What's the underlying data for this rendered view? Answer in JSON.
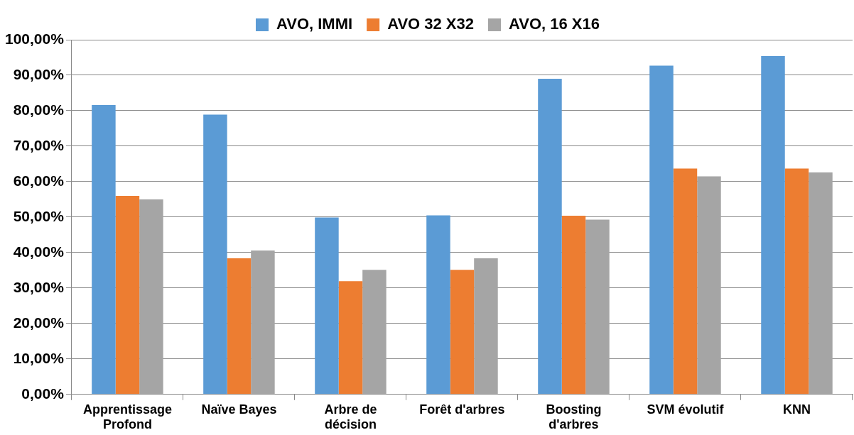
{
  "chart_data": {
    "type": "bar",
    "categories": [
      "Apprentissage Profond",
      "Naïve Bayes",
      "Arbre de décision",
      "Forêt d'arbres",
      "Boosting d'arbres",
      "SVM évolutif",
      "KNN"
    ],
    "series": [
      {
        "name": "AVO, IMMI",
        "color": "#5b9bd5",
        "values": [
          81.6,
          78.9,
          49.9,
          50.5,
          89.0,
          92.7,
          95.4
        ]
      },
      {
        "name": "AVO 32 X32",
        "color": "#ed7d31",
        "values": [
          56.0,
          38.4,
          31.9,
          35.1,
          50.4,
          63.7,
          63.7
        ]
      },
      {
        "name": "AVO, 16 X16",
        "color": "#a5a5a5",
        "values": [
          55.0,
          40.6,
          35.1,
          38.4,
          49.3,
          61.5,
          62.6
        ]
      }
    ],
    "ylim": [
      0,
      100
    ],
    "yticks": [
      {
        "value": 0,
        "label": "0,00%"
      },
      {
        "value": 10,
        "label": "10,00%"
      },
      {
        "value": 20,
        "label": "20,00%"
      },
      {
        "value": 30,
        "label": "30,00%"
      },
      {
        "value": 40,
        "label": "40,00%"
      },
      {
        "value": 50,
        "label": "50,00%"
      },
      {
        "value": 60,
        "label": "60,00%"
      },
      {
        "value": 70,
        "label": "70,00%"
      },
      {
        "value": 80,
        "label": "80,00%"
      },
      {
        "value": 90,
        "label": "90,00%"
      },
      {
        "value": 100,
        "label": "100,00%"
      }
    ],
    "grid": "y",
    "legend": "top"
  }
}
